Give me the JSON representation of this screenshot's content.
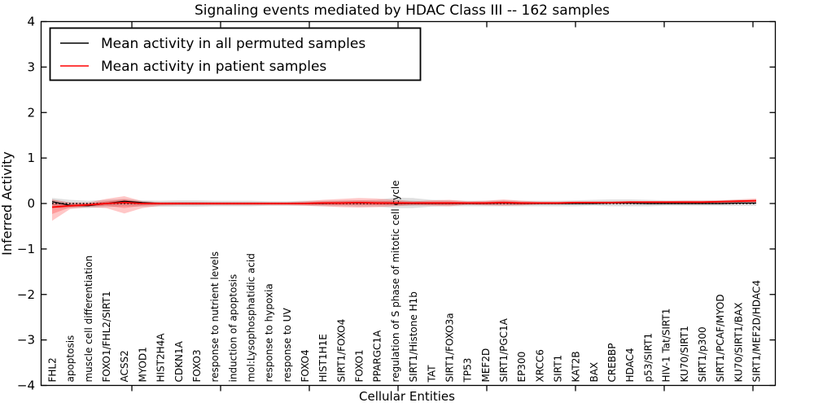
{
  "accent_colors": {
    "permuted_line": "#000000",
    "patient_line": "#ff0000",
    "patient_band": "rgba(255,0,0,0.22)",
    "permuted_band": "rgba(110,110,110,0.22)",
    "frame": "#000000",
    "background": "#ffffff"
  },
  "legend": {
    "items": [
      {
        "label": "Mean activity in all permuted samples",
        "color": "#000000"
      },
      {
        "label": "Mean activity in patient samples",
        "color": "#ff0000"
      }
    ]
  },
  "chart_data": {
    "type": "line",
    "title": "Signaling events mediated by HDAC Class III -- 162 samples",
    "xlabel": "Cellular Entities",
    "ylabel": "Inferred Activity",
    "ylim": [
      -4,
      4
    ],
    "y_ticks": [
      4,
      3,
      2,
      1,
      0,
      -1,
      -2,
      -3,
      -4
    ],
    "y_tick_labels": [
      "4",
      "3",
      "2",
      "1",
      "0",
      "−1",
      "−2",
      "−3",
      "−4"
    ],
    "grid": false,
    "legend_position": "upper left",
    "zero_line": {
      "y": 0,
      "style": "dotted",
      "color": "#000000"
    },
    "categories": [
      "FHL2",
      "apoptosis",
      "muscle cell differentiation",
      "FOXO1/FHL2/SIRT1",
      "ACSS2",
      "MYOD1",
      "HIST2H4A",
      "CDKN1A",
      "FOXO3",
      "response to nutrient levels",
      "induction of apoptosis",
      "mol:Lysophosphatidic acid",
      "response to hypoxia",
      "response to UV",
      "FOXO4",
      "HIST1H1E",
      "SIRT1/FOXO4",
      "FOXO1",
      "PPARGC1A",
      "regulation of S phase of mitotic cell cycle",
      "SIRT1/Histone H1b",
      "TAT",
      "SIRT1/FOXO3a",
      "TP53",
      "MEF2D",
      "SIRT1/PGC1A",
      "EP300",
      "XRCC6",
      "SIRT1",
      "KAT2B",
      "BAX",
      "CREBBP",
      "HDAC4",
      "p53/SIRT1",
      "HIV-1 Tat/SIRT1",
      "KU70/SIRT1",
      "SIRT1/p300",
      "SIRT1/PCAF/MYOD",
      "KU70/SIRT1/BAX",
      "SIRT1/MEF2D/HDAC4"
    ],
    "series": [
      {
        "name": "Mean activity in all permuted samples",
        "color": "#000000",
        "values": [
          0.04,
          -0.04,
          -0.05,
          0.0,
          0.05,
          0.02,
          0.0,
          0.0,
          0.0,
          0.0,
          0.0,
          0.0,
          0.0,
          0.0,
          0.0,
          0.0,
          0.01,
          0.01,
          0.01,
          0.0,
          0.0,
          0.0,
          0.0,
          0.0,
          0.0,
          0.01,
          0.0,
          0.0,
          0.0,
          0.0,
          0.0,
          0.01,
          0.01,
          0.0,
          0.0,
          0.0,
          0.0,
          0.0,
          0.01,
          0.01
        ],
        "band_upper": [
          0.12,
          0.08,
          0.06,
          0.08,
          0.1,
          0.07,
          0.06,
          0.07,
          0.07,
          0.06,
          0.06,
          0.06,
          0.05,
          0.05,
          0.06,
          0.06,
          0.07,
          0.07,
          0.08,
          0.13,
          0.12,
          0.08,
          0.07,
          0.06,
          0.06,
          0.07,
          0.06,
          0.06,
          0.06,
          0.07,
          0.08,
          0.09,
          0.09,
          0.08,
          0.07,
          0.07,
          0.07,
          0.07,
          0.08,
          0.08
        ],
        "band_lower": [
          -0.1,
          -0.1,
          -0.1,
          -0.08,
          -0.06,
          -0.07,
          -0.07,
          -0.07,
          -0.07,
          -0.06,
          -0.06,
          -0.06,
          -0.05,
          -0.05,
          -0.05,
          -0.06,
          -0.06,
          -0.07,
          -0.07,
          -0.1,
          -0.1,
          -0.07,
          -0.06,
          -0.06,
          -0.06,
          -0.06,
          -0.06,
          -0.06,
          -0.06,
          -0.06,
          -0.05,
          -0.06,
          -0.06,
          -0.06,
          -0.05,
          -0.05,
          -0.05,
          -0.05,
          -0.05,
          -0.05
        ]
      },
      {
        "name": "Mean activity in patient samples",
        "color": "#ff0000",
        "values": [
          -0.08,
          -0.05,
          -0.03,
          0.0,
          0.02,
          0.0,
          0.0,
          0.0,
          0.0,
          0.0,
          0.0,
          0.0,
          0.0,
          0.0,
          0.0,
          0.01,
          0.01,
          0.02,
          0.01,
          0.01,
          0.01,
          0.01,
          0.01,
          0.01,
          0.01,
          0.02,
          0.01,
          0.01,
          0.01,
          0.02,
          0.02,
          0.02,
          0.03,
          0.03,
          0.03,
          0.03,
          0.03,
          0.04,
          0.05,
          0.06
        ],
        "band_upper": [
          0.09,
          0.02,
          0.02,
          0.1,
          0.16,
          0.05,
          0.03,
          0.03,
          0.03,
          0.03,
          0.03,
          0.03,
          0.03,
          0.03,
          0.05,
          0.08,
          0.1,
          0.12,
          0.11,
          0.08,
          0.05,
          0.07,
          0.08,
          0.05,
          0.06,
          0.09,
          0.06,
          0.04,
          0.04,
          0.05,
          0.05,
          0.05,
          0.05,
          0.05,
          0.05,
          0.06,
          0.06,
          0.07,
          0.09,
          0.11
        ],
        "band_lower": [
          -0.38,
          -0.12,
          -0.08,
          -0.1,
          -0.22,
          -0.1,
          -0.05,
          -0.04,
          -0.04,
          -0.04,
          -0.04,
          -0.04,
          -0.04,
          -0.04,
          -0.05,
          -0.06,
          -0.08,
          -0.09,
          -0.08,
          -0.06,
          -0.04,
          -0.05,
          -0.06,
          -0.03,
          -0.04,
          -0.05,
          -0.04,
          -0.02,
          -0.02,
          -0.01,
          -0.01,
          -0.01,
          -0.01,
          0.0,
          0.0,
          0.0,
          0.0,
          0.01,
          0.02,
          0.02
        ]
      }
    ]
  }
}
